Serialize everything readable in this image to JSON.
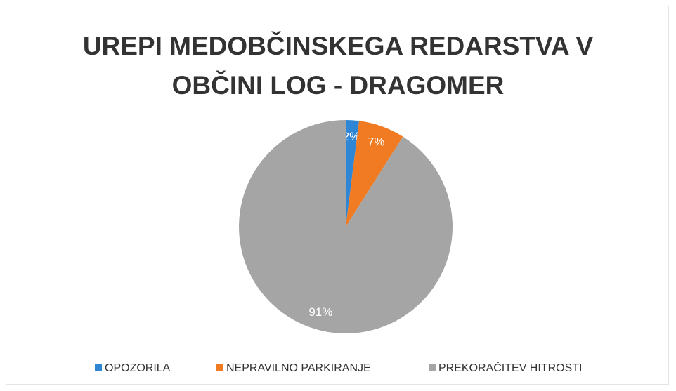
{
  "chart_data": {
    "type": "pie",
    "title": "UREPI MEDOBČINSKEGA REDARSTVA V OBČINI LOG - DRAGOMER",
    "categories": [
      "OPOZORILA",
      "NEPRAVILNO PARKIRANJE",
      "PREKORAČITEV HITROSTI"
    ],
    "values": [
      2,
      7,
      91
    ],
    "value_labels": [
      "2%",
      "7%",
      "91%"
    ],
    "colors": [
      "#2e86d4",
      "#f07b22",
      "#a5a5a5"
    ],
    "legend": "bottom"
  }
}
